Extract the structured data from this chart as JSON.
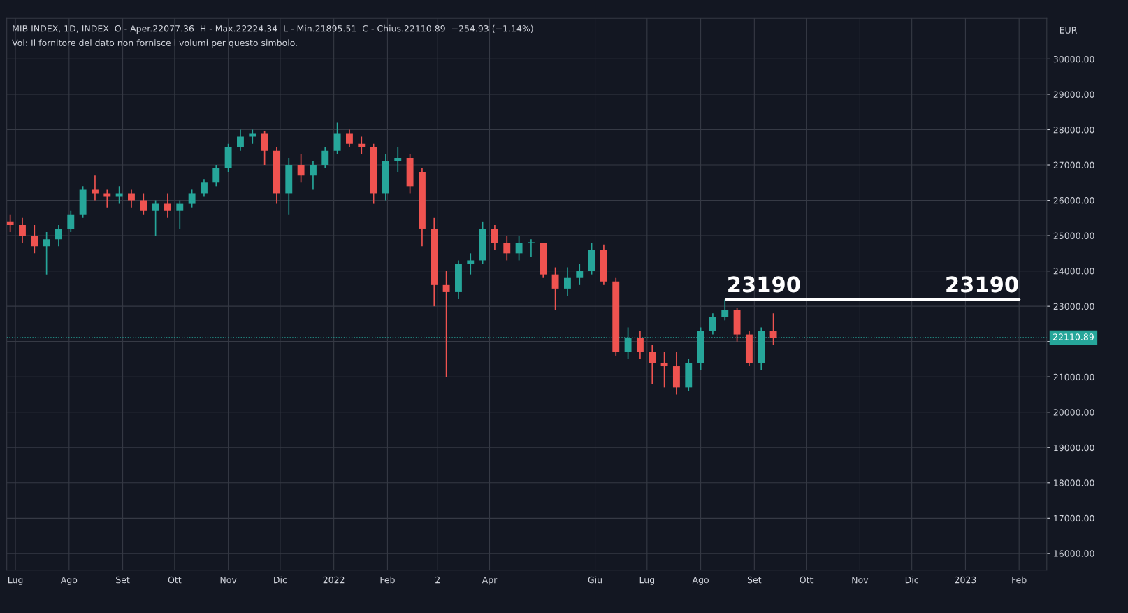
{
  "chart_data": {
    "type": "candlestick",
    "title": "MIB INDEX, 1D, INDEX  O - Aper.22077.36  H - Max.22224.34  L - Min.21895.51  C - Chius.22110.89  −254.93 (−1.14%)",
    "subtitle": "Vol: Il fornitore del dato non fornisce i volumi per questo simbolo.",
    "ylabel": "EUR",
    "x": [
      "2021-06-28",
      "2021-07-05",
      "2021-07-12",
      "2021-07-19",
      "2021-07-26",
      "2021-08-02",
      "2021-08-09",
      "2021-08-16",
      "2021-08-23",
      "2021-08-30",
      "2021-09-06",
      "2021-09-13",
      "2021-09-20",
      "2021-09-27",
      "2021-10-04",
      "2021-10-11",
      "2021-10-18",
      "2021-10-25",
      "2021-11-01",
      "2021-11-08",
      "2021-11-15",
      "2021-11-22",
      "2021-11-29",
      "2021-12-06",
      "2021-12-13",
      "2021-12-20",
      "2021-12-27",
      "2022-01-03",
      "2022-01-10",
      "2022-01-17",
      "2022-01-24",
      "2022-01-31",
      "2022-02-07",
      "2022-02-14",
      "2022-02-21",
      "2022-02-28",
      "2022-03-07",
      "2022-03-14",
      "2022-03-21",
      "2022-03-28",
      "2022-04-04",
      "2022-04-11",
      "2022-04-18",
      "2022-04-25",
      "2022-05-02",
      "2022-05-09",
      "2022-05-16",
      "2022-05-23",
      "2022-05-30",
      "2022-06-06",
      "2022-06-13",
      "2022-06-20",
      "2022-06-27",
      "2022-07-04",
      "2022-07-11",
      "2022-07-18",
      "2022-07-25",
      "2022-08-01",
      "2022-08-08",
      "2022-08-15",
      "2022-08-22",
      "2022-08-29",
      "2022-09-05",
      "2022-09-12"
    ],
    "ohlc": [
      [
        25400,
        25600,
        25100,
        25300
      ],
      [
        25300,
        25500,
        24800,
        25000
      ],
      [
        25000,
        25300,
        24500,
        24700
      ],
      [
        24700,
        25100,
        23900,
        24900
      ],
      [
        24900,
        25300,
        24700,
        25200
      ],
      [
        25200,
        25700,
        25100,
        25600
      ],
      [
        25600,
        26400,
        25500,
        26300
      ],
      [
        26300,
        26700,
        26000,
        26200
      ],
      [
        26200,
        26300,
        25800,
        26100
      ],
      [
        26100,
        26400,
        25900,
        26200
      ],
      [
        26200,
        26300,
        25800,
        26000
      ],
      [
        26000,
        26200,
        25600,
        25700
      ],
      [
        25700,
        26000,
        25000,
        25900
      ],
      [
        25900,
        26200,
        25500,
        25700
      ],
      [
        25700,
        26000,
        25200,
        25900
      ],
      [
        25900,
        26300,
        25800,
        26200
      ],
      [
        26200,
        26600,
        26100,
        26500
      ],
      [
        26500,
        27000,
        26400,
        26900
      ],
      [
        26900,
        27600,
        26800,
        27500
      ],
      [
        27500,
        28000,
        27400,
        27800
      ],
      [
        27800,
        28000,
        27600,
        27900
      ],
      [
        27900,
        27950,
        27000,
        27400
      ],
      [
        27400,
        27500,
        25900,
        26200
      ],
      [
        26200,
        27200,
        25600,
        27000
      ],
      [
        27000,
        27300,
        26500,
        26700
      ],
      [
        26700,
        27100,
        26300,
        27000
      ],
      [
        27000,
        27500,
        26900,
        27400
      ],
      [
        27400,
        28200,
        27300,
        27900
      ],
      [
        27900,
        28000,
        27500,
        27600
      ],
      [
        27600,
        27800,
        27300,
        27500
      ],
      [
        27500,
        27600,
        25900,
        26200
      ],
      [
        26200,
        27300,
        26000,
        27100
      ],
      [
        27100,
        27500,
        26800,
        27200
      ],
      [
        27200,
        27300,
        26200,
        26400
      ],
      [
        26800,
        26900,
        24700,
        25200
      ],
      [
        25200,
        25500,
        23000,
        23600
      ],
      [
        23600,
        24000,
        21000,
        23400
      ],
      [
        23400,
        24300,
        23200,
        24200
      ],
      [
        24200,
        24500,
        23900,
        24300
      ],
      [
        24300,
        25400,
        24200,
        25200
      ],
      [
        25200,
        25300,
        24600,
        24800
      ],
      [
        24800,
        25000,
        24300,
        24500
      ],
      [
        24500,
        25000,
        24300,
        24800
      ],
      [
        24800,
        24900,
        24400,
        24800
      ],
      [
        24800,
        24800,
        23800,
        23900
      ],
      [
        23900,
        24100,
        22900,
        23500
      ],
      [
        23500,
        24100,
        23300,
        23800
      ],
      [
        23800,
        24200,
        23600,
        24000
      ],
      [
        24000,
        24800,
        23900,
        24600
      ],
      [
        24600,
        24750,
        23600,
        23700
      ],
      [
        23700,
        23800,
        21600,
        21700
      ],
      [
        21700,
        22400,
        21500,
        22100
      ],
      [
        22100,
        22300,
        21500,
        21700
      ],
      [
        21700,
        21900,
        20800,
        21400
      ],
      [
        21400,
        21700,
        20700,
        21300
      ],
      [
        21300,
        21700,
        20500,
        20700
      ],
      [
        20700,
        21500,
        20600,
        21400
      ],
      [
        21400,
        22400,
        21200,
        22300
      ],
      [
        22300,
        22800,
        22200,
        22700
      ],
      [
        22700,
        23190,
        22600,
        22900
      ],
      [
        22900,
        22950,
        22000,
        22200
      ],
      [
        22200,
        22300,
        21300,
        21400
      ],
      [
        21400,
        22400,
        21200,
        22300
      ],
      [
        22300,
        22800,
        21900,
        22110.89
      ]
    ],
    "colors": [
      "#ef5350",
      "#ef5350",
      "#ef5350",
      "#26a69a",
      "#26a69a",
      "#26a69a",
      "#26a69a",
      "#ef5350",
      "#ef5350",
      "#26a69a",
      "#ef5350",
      "#ef5350",
      "#26a69a",
      "#ef5350",
      "#26a69a",
      "#26a69a",
      "#26a69a",
      "#26a69a",
      "#26a69a",
      "#26a69a",
      "#26a69a",
      "#ef5350",
      "#ef5350",
      "#26a69a",
      "#ef5350",
      "#26a69a",
      "#26a69a",
      "#26a69a",
      "#ef5350",
      "#ef5350",
      "#ef5350",
      "#26a69a",
      "#26a69a",
      "#ef5350",
      "#ef5350",
      "#ef5350",
      "#ef5350",
      "#26a69a",
      "#26a69a",
      "#26a69a",
      "#ef5350",
      "#ef5350",
      "#26a69a",
      "#26a69a",
      "#ef5350",
      "#ef5350",
      "#26a69a",
      "#26a69a",
      "#26a69a",
      "#ef5350",
      "#ef5350",
      "#26a69a",
      "#ef5350",
      "#ef5350",
      "#ef5350",
      "#ef5350",
      "#26a69a",
      "#26a69a",
      "#26a69a",
      "#26a69a",
      "#ef5350",
      "#ef5350",
      "#26a69a",
      "#ef5350"
    ],
    "series": [
      {
        "type": "line",
        "x": [
          "2022-08-16",
          "2023-02-01"
        ],
        "values": [
          23190,
          23190
        ],
        "color": "#ffffff"
      }
    ],
    "annotations": [
      {
        "text": "23190",
        "x": "2022-08-16",
        "y": 23190
      },
      {
        "text": "23190",
        "x": "2023-02-01",
        "y": 23190
      }
    ],
    "ref_lines": [
      {
        "axis": "y",
        "value": 22110.89,
        "label": "22110.89",
        "color": "#26a69a",
        "line_style": "dotted"
      }
    ],
    "xlim": [
      "2021-06-26",
      "2023-02-17"
    ],
    "xticks": [
      {
        "value": "2021-07-01",
        "label": "Lug"
      },
      {
        "value": "2021-08-01",
        "label": "Ago"
      },
      {
        "value": "2021-09-01",
        "label": "Set"
      },
      {
        "value": "2021-10-01",
        "label": "Ott"
      },
      {
        "value": "2021-11-01",
        "label": "Nov"
      },
      {
        "value": "2021-12-01",
        "label": "Dic"
      },
      {
        "value": "2022-01-01",
        "label": "2022"
      },
      {
        "value": "2022-02-01",
        "label": "Feb"
      },
      {
        "value": "2022-03-02",
        "label": "2"
      },
      {
        "value": "2022-04-01",
        "label": "Apr"
      },
      {
        "value": "2022-06-01",
        "label": "Giu"
      },
      {
        "value": "2022-07-01",
        "label": "Lug"
      },
      {
        "value": "2022-08-01",
        "label": "Ago"
      },
      {
        "value": "2022-09-01",
        "label": "Set"
      },
      {
        "value": "2022-10-01",
        "label": "Ott"
      },
      {
        "value": "2022-11-01",
        "label": "Nov"
      },
      {
        "value": "2022-12-01",
        "label": "Dic"
      },
      {
        "value": "2023-01-01",
        "label": "2023"
      },
      {
        "value": "2023-02-01",
        "label": "Feb"
      }
    ],
    "ylim": [
      15530,
      31150
    ],
    "yticks": [
      {
        "value": 16000,
        "label": "16000.00"
      },
      {
        "value": 17000,
        "label": "17000.00"
      },
      {
        "value": 18000,
        "label": "18000.00"
      },
      {
        "value": 19000,
        "label": "19000.00"
      },
      {
        "value": 20000,
        "label": "20000.00"
      },
      {
        "value": 21000,
        "label": "21000.00"
      },
      {
        "value": 22000,
        "label": null
      },
      {
        "value": 23000,
        "label": "23000.00"
      },
      {
        "value": 24000,
        "label": "24000.00"
      },
      {
        "value": 25000,
        "label": "25000.00"
      },
      {
        "value": 26000,
        "label": "26000.00"
      },
      {
        "value": 27000,
        "label": "27000.00"
      },
      {
        "value": 28000,
        "label": "28000.00"
      },
      {
        "value": 29000,
        "label": "29000.00"
      },
      {
        "value": 30000,
        "label": "30000.00"
      }
    ],
    "grid": true
  }
}
